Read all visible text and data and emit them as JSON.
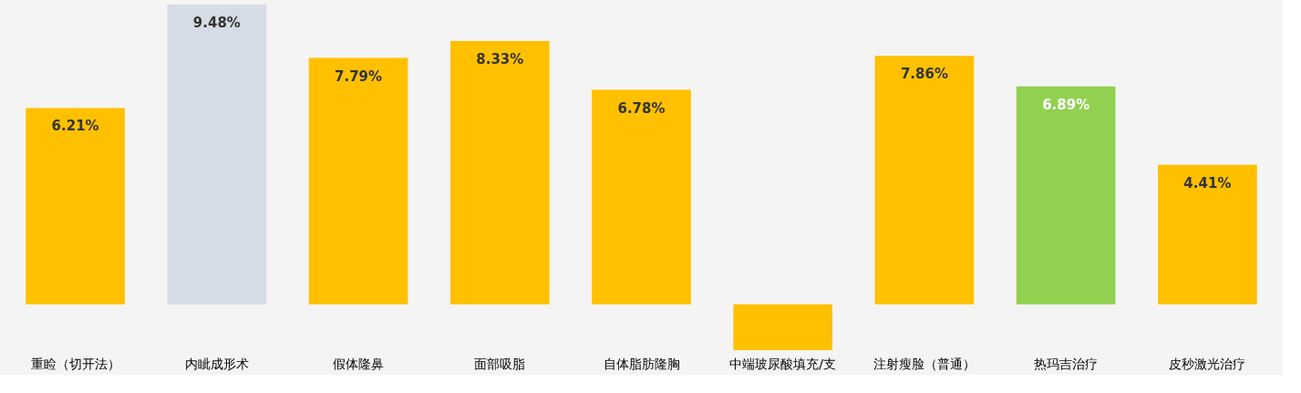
{
  "chart_data": {
    "type": "bar",
    "categories": [
      "重睑（切开法）",
      "内眦成形术",
      "假体隆鼻",
      "面部吸脂",
      "自体脂肪隆胸",
      "中端玻尿酸填充/支",
      "注射瘦脸（普通）",
      "热玛吉治疗",
      "皮秒激光治疗"
    ],
    "values": [
      6.21,
      9.48,
      7.79,
      8.33,
      6.78,
      -1.45,
      7.86,
      6.89,
      4.41
    ],
    "colors": [
      "#ffc000",
      "#d6dce5",
      "#ffc000",
      "#ffc000",
      "#ffc000",
      "#ffc000",
      "#ffc000",
      "#92d050",
      "#ffc000"
    ],
    "value_labels": [
      "6.21%",
      "9.48%",
      "7.79%",
      "8.33%",
      "6.78%",
      null,
      "7.86%",
      "6.89%",
      "4.41%"
    ],
    "tick_labels": "x",
    "grid": false
  }
}
